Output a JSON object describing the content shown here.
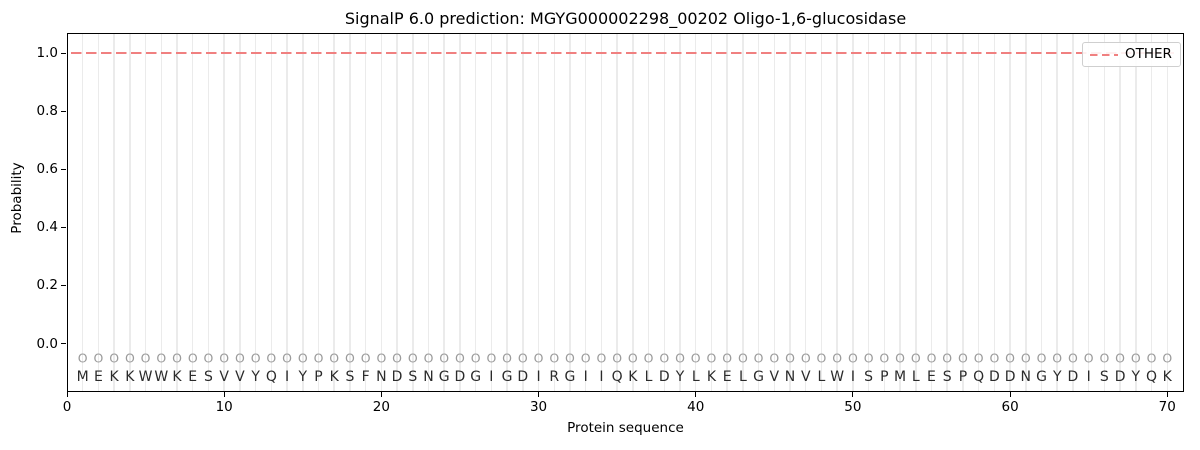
{
  "title": "SignalP 6.0 prediction: MGYG000002298_00202 Oligo-1,6-glucosidase",
  "axes": {
    "x_label": "Protein sequence",
    "y_label": "Probability",
    "x_ticks": [
      "0",
      "10",
      "20",
      "30",
      "40",
      "50",
      "60",
      "70"
    ],
    "y_ticks": [
      "0.0",
      "0.2",
      "0.4",
      "0.6",
      "0.8",
      "1.0"
    ]
  },
  "legend": {
    "items": [
      {
        "label": "OTHER",
        "color": "#f08080",
        "linestyle": "dashed"
      }
    ]
  },
  "sequence": {
    "residues": "MEKKWWKESVVYQIYPKSFNDSNGDGIGDIRGIIQKLDYLKELGVNVLWISPMLESPQDDNGYDISDYQK",
    "predicted_labels": "OOOOOOOOOOOOOOOOOOOOOOOOOOOOOOOOOOOOOOOOOOOOOOOOOOOOOOOOOOOOOOOOOOOOOO",
    "length": 70
  },
  "colors": {
    "other_line": "#f08080",
    "grid": "#ebebeb",
    "marker": "#9b9b9b",
    "residue_text": "#2b2b2b",
    "frame": "#000000",
    "background": "#ffffff"
  },
  "chart_data": {
    "type": "line",
    "title": "SignalP 6.0 prediction: MGYG000002298_00202 Oligo-1,6-glucosidase",
    "xlabel": "Protein sequence",
    "ylabel": "Probability",
    "xlim": [
      0,
      71
    ],
    "ylim": [
      -0.165,
      1.07
    ],
    "x_ticks": [
      0,
      10,
      20,
      30,
      40,
      50,
      60,
      70
    ],
    "y_ticks": [
      0.0,
      0.2,
      0.4,
      0.6,
      0.8,
      1.0
    ],
    "grid": "vertical gridline at each residue position 1-70",
    "legend_position": "upper right",
    "series": [
      {
        "name": "OTHER",
        "linestyle": "dashed",
        "color": "#f08080",
        "x": [
          1,
          70
        ],
        "y": [
          1.0,
          1.0
        ],
        "note": "constant probability 1.0 across all 70 positions"
      }
    ],
    "sequence_annotation": {
      "residues": "MEKKWWKESVVYQIYPKSFNDSNGDGIGDIRGIIQKLDYLKELGVNVLWISPMLESPQDDNGYDISDYQK",
      "per_position_predicted_label": "O",
      "marker_y": -0.052,
      "residue_y": -0.118
    }
  }
}
